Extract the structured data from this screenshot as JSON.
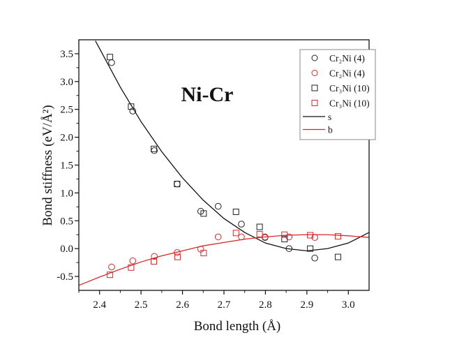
{
  "chart_data": {
    "type": "scatter",
    "title": "Ni-Cr",
    "xlabel": "Bond length (Å)",
    "ylabel": "Bond stiffness (eV/Å²)",
    "xlim": [
      2.35,
      3.05
    ],
    "ylim": [
      -0.75,
      3.75
    ],
    "xticks": [
      "2.4",
      "2.5",
      "2.6",
      "2.7",
      "2.8",
      "2.9",
      "3.0"
    ],
    "yticks": [
      "-0.5",
      "0.0",
      "0.5",
      "1.0",
      "1.5",
      "2.0",
      "2.5",
      "3.0",
      "3.5"
    ],
    "grid": false,
    "legend_position": "top-right",
    "series": [
      {
        "name": "Cr₂Ni (4)",
        "marker": "circle",
        "color": "#222222",
        "x": [
          2.429,
          2.48,
          2.532,
          2.587,
          2.644,
          2.686,
          2.742,
          2.799,
          2.857,
          2.919
        ],
        "y": [
          3.34,
          2.47,
          1.76,
          1.16,
          0.67,
          0.76,
          0.44,
          0.2,
          0.0,
          -0.17
        ]
      },
      {
        "name": "Cr₂Ni (4)",
        "marker": "circle",
        "color": "#d62728",
        "x": [
          2.429,
          2.48,
          2.532,
          2.587,
          2.644,
          2.686,
          2.742,
          2.799,
          2.857,
          2.919
        ],
        "y": [
          -0.33,
          -0.22,
          -0.14,
          -0.07,
          -0.01,
          0.21,
          0.21,
          0.21,
          0.21,
          0.2
        ]
      },
      {
        "name": "Cr₃Ni (10)",
        "marker": "square",
        "color": "#222222",
        "x": [
          2.425,
          2.476,
          2.531,
          2.587,
          2.651,
          2.729,
          2.786,
          2.846,
          2.908,
          2.975
        ],
        "y": [
          3.44,
          2.55,
          1.79,
          1.16,
          0.63,
          0.66,
          0.39,
          0.17,
          0.0,
          -0.15
        ]
      },
      {
        "name": "Cr₃Ni (10)",
        "marker": "square",
        "color": "#d62728",
        "x": [
          2.425,
          2.476,
          2.531,
          2.588,
          2.651,
          2.729,
          2.786,
          2.846,
          2.908,
          2.975
        ],
        "y": [
          -0.47,
          -0.34,
          -0.23,
          -0.15,
          -0.08,
          0.28,
          0.26,
          0.25,
          0.24,
          0.22
        ]
      },
      {
        "name": "s",
        "marker": "line",
        "color": "#111111",
        "x": [
          2.39,
          2.45,
          2.5,
          2.55,
          2.6,
          2.65,
          2.7,
          2.75,
          2.8,
          2.85,
          2.9,
          2.95,
          3.0,
          3.05
        ],
        "y": [
          3.73,
          2.9,
          2.28,
          1.74,
          1.27,
          0.87,
          0.54,
          0.29,
          0.1,
          0.0,
          -0.04,
          0.0,
          0.1,
          0.29
        ]
      },
      {
        "name": "b",
        "marker": "line",
        "color": "#d62728",
        "x": [
          2.35,
          2.4,
          2.45,
          2.5,
          2.55,
          2.6,
          2.65,
          2.7,
          2.75,
          2.8,
          2.85,
          2.9,
          2.95,
          3.0,
          3.05
        ],
        "y": [
          -0.66,
          -0.51,
          -0.37,
          -0.24,
          -0.13,
          -0.04,
          0.05,
          0.11,
          0.17,
          0.21,
          0.24,
          0.25,
          0.25,
          0.23,
          0.2
        ]
      }
    ]
  }
}
